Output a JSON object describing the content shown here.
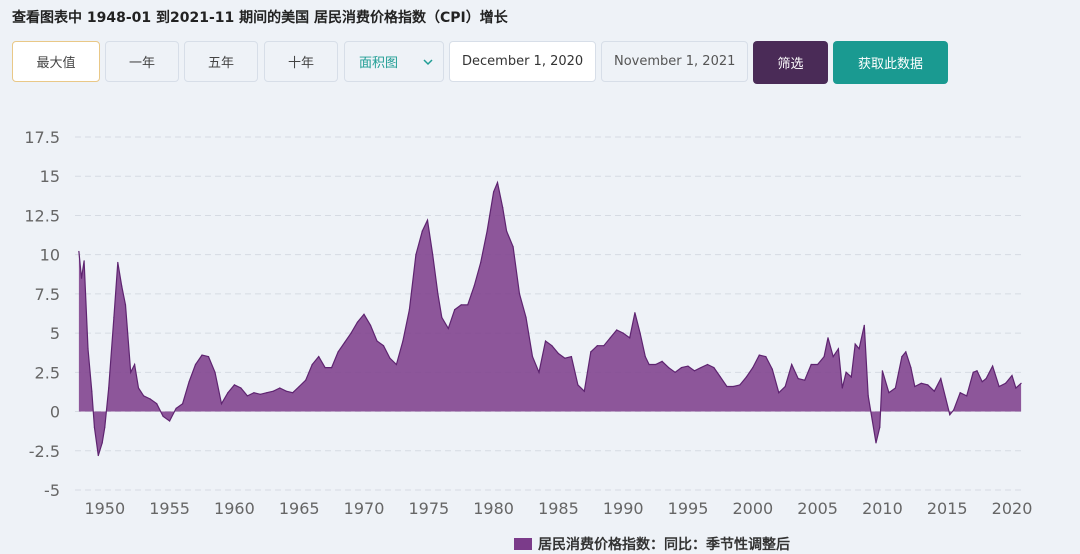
{
  "page": {
    "title": "查看图表中 1948-01 到2021-11 期间的美国 居民消费价格指数（CPI）增长"
  },
  "toolbar": {
    "ranges": [
      "最大值",
      "一年",
      "五年",
      "十年"
    ],
    "chart_type_select": "面积图",
    "start_date": "December 1, 2020",
    "end_date": "November 1, 2021",
    "filter_label": "筛选",
    "fetch_label": "获取此数据"
  },
  "colors": {
    "area": "#7b3b8a",
    "filter_button": "#4a2b57",
    "fetch_button": "#1a9a91",
    "accent_text": "#1f9d94"
  },
  "chart_data": {
    "type": "area",
    "title": "",
    "xlabel": "",
    "ylabel": "",
    "xlim": [
      1947.7,
      2021.0
    ],
    "ylim": [
      -5,
      17.5
    ],
    "yticks": [
      "17.5",
      "15",
      "12.5",
      "10",
      "7.5",
      "5",
      "2.5",
      "0",
      "-2.5",
      "-5"
    ],
    "xticks": [
      "1950",
      "1955",
      "1960",
      "1965",
      "1970",
      "1975",
      "1980",
      "1985",
      "1990",
      "1995",
      "2000",
      "2005",
      "2010",
      "2015",
      "2020"
    ],
    "grid": "horizontal dashed",
    "legend_position": "bottom-center",
    "series": [
      {
        "name": "居民消费价格指数：同比：季节性调整后",
        "points": [
          [
            1948.0,
            10.2
          ],
          [
            1948.2,
            8.5
          ],
          [
            1948.4,
            9.6
          ],
          [
            1948.7,
            4.0
          ],
          [
            1949.0,
            1.3
          ],
          [
            1949.2,
            -1.0
          ],
          [
            1949.5,
            -2.8
          ],
          [
            1949.8,
            -2.0
          ],
          [
            1950.0,
            -1.0
          ],
          [
            1950.3,
            1.5
          ],
          [
            1950.7,
            6.0
          ],
          [
            1951.0,
            9.5
          ],
          [
            1951.3,
            8.0
          ],
          [
            1951.6,
            6.8
          ],
          [
            1952.0,
            2.5
          ],
          [
            1952.3,
            3.0
          ],
          [
            1952.6,
            1.5
          ],
          [
            1953.0,
            1.0
          ],
          [
            1953.5,
            0.8
          ],
          [
            1954.0,
            0.5
          ],
          [
            1954.5,
            -0.3
          ],
          [
            1955.0,
            -0.6
          ],
          [
            1955.5,
            0.2
          ],
          [
            1956.0,
            0.5
          ],
          [
            1956.5,
            1.9
          ],
          [
            1957.0,
            3.0
          ],
          [
            1957.5,
            3.6
          ],
          [
            1958.0,
            3.5
          ],
          [
            1958.5,
            2.5
          ],
          [
            1959.0,
            0.5
          ],
          [
            1959.5,
            1.2
          ],
          [
            1960.0,
            1.7
          ],
          [
            1960.5,
            1.5
          ],
          [
            1961.0,
            1.0
          ],
          [
            1961.5,
            1.2
          ],
          [
            1962.0,
            1.1
          ],
          [
            1962.5,
            1.2
          ],
          [
            1963.0,
            1.3
          ],
          [
            1963.5,
            1.5
          ],
          [
            1964.0,
            1.3
          ],
          [
            1964.5,
            1.2
          ],
          [
            1965.0,
            1.6
          ],
          [
            1965.5,
            2.0
          ],
          [
            1966.0,
            3.0
          ],
          [
            1966.5,
            3.5
          ],
          [
            1967.0,
            2.8
          ],
          [
            1967.5,
            2.8
          ],
          [
            1968.0,
            3.8
          ],
          [
            1968.5,
            4.4
          ],
          [
            1969.0,
            5.0
          ],
          [
            1969.5,
            5.7
          ],
          [
            1970.0,
            6.2
          ],
          [
            1970.5,
            5.5
          ],
          [
            1971.0,
            4.5
          ],
          [
            1971.5,
            4.2
          ],
          [
            1972.0,
            3.4
          ],
          [
            1972.5,
            3.0
          ],
          [
            1973.0,
            4.5
          ],
          [
            1973.5,
            6.5
          ],
          [
            1974.0,
            10.0
          ],
          [
            1974.5,
            11.5
          ],
          [
            1974.9,
            12.2
          ],
          [
            1975.3,
            10.0
          ],
          [
            1975.7,
            7.5
          ],
          [
            1976.0,
            6.0
          ],
          [
            1976.5,
            5.3
          ],
          [
            1977.0,
            6.5
          ],
          [
            1977.5,
            6.8
          ],
          [
            1978.0,
            6.8
          ],
          [
            1978.5,
            8.0
          ],
          [
            1979.0,
            9.5
          ],
          [
            1979.5,
            11.5
          ],
          [
            1980.0,
            14.0
          ],
          [
            1980.3,
            14.6
          ],
          [
            1980.7,
            13.0
          ],
          [
            1981.0,
            11.5
          ],
          [
            1981.5,
            10.5
          ],
          [
            1982.0,
            7.5
          ],
          [
            1982.5,
            6.0
          ],
          [
            1983.0,
            3.5
          ],
          [
            1983.5,
            2.5
          ],
          [
            1984.0,
            4.5
          ],
          [
            1984.5,
            4.2
          ],
          [
            1985.0,
            3.7
          ],
          [
            1985.5,
            3.4
          ],
          [
            1986.0,
            3.5
          ],
          [
            1986.5,
            1.7
          ],
          [
            1987.0,
            1.3
          ],
          [
            1987.5,
            3.8
          ],
          [
            1988.0,
            4.2
          ],
          [
            1988.5,
            4.2
          ],
          [
            1989.0,
            4.7
          ],
          [
            1989.5,
            5.2
          ],
          [
            1990.0,
            5.0
          ],
          [
            1990.5,
            4.7
          ],
          [
            1990.9,
            6.3
          ],
          [
            1991.3,
            5.0
          ],
          [
            1991.7,
            3.5
          ],
          [
            1992.0,
            3.0
          ],
          [
            1992.5,
            3.0
          ],
          [
            1993.0,
            3.2
          ],
          [
            1993.5,
            2.8
          ],
          [
            1994.0,
            2.5
          ],
          [
            1994.5,
            2.8
          ],
          [
            1995.0,
            2.9
          ],
          [
            1995.5,
            2.6
          ],
          [
            1996.0,
            2.8
          ],
          [
            1996.5,
            3.0
          ],
          [
            1997.0,
            2.8
          ],
          [
            1997.5,
            2.2
          ],
          [
            1998.0,
            1.6
          ],
          [
            1998.5,
            1.6
          ],
          [
            1999.0,
            1.7
          ],
          [
            1999.5,
            2.2
          ],
          [
            2000.0,
            2.8
          ],
          [
            2000.5,
            3.6
          ],
          [
            2001.0,
            3.5
          ],
          [
            2001.5,
            2.7
          ],
          [
            2002.0,
            1.2
          ],
          [
            2002.5,
            1.6
          ],
          [
            2003.0,
            3.0
          ],
          [
            2003.5,
            2.1
          ],
          [
            2004.0,
            2.0
          ],
          [
            2004.5,
            3.0
          ],
          [
            2005.0,
            3.0
          ],
          [
            2005.5,
            3.5
          ],
          [
            2005.8,
            4.7
          ],
          [
            2006.2,
            3.5
          ],
          [
            2006.6,
            4.0
          ],
          [
            2006.9,
            1.5
          ],
          [
            2007.2,
            2.5
          ],
          [
            2007.6,
            2.2
          ],
          [
            2007.9,
            4.3
          ],
          [
            2008.2,
            4.0
          ],
          [
            2008.6,
            5.5
          ],
          [
            2008.9,
            1.0
          ],
          [
            2009.2,
            -0.5
          ],
          [
            2009.5,
            -2.0
          ],
          [
            2009.8,
            -1.0
          ],
          [
            2010.0,
            2.6
          ],
          [
            2010.5,
            1.2
          ],
          [
            2011.0,
            1.5
          ],
          [
            2011.5,
            3.5
          ],
          [
            2011.8,
            3.8
          ],
          [
            2012.2,
            2.8
          ],
          [
            2012.5,
            1.6
          ],
          [
            2013.0,
            1.8
          ],
          [
            2013.5,
            1.7
          ],
          [
            2014.0,
            1.3
          ],
          [
            2014.5,
            2.1
          ],
          [
            2014.9,
            0.8
          ],
          [
            2015.2,
            -0.2
          ],
          [
            2015.5,
            0.1
          ],
          [
            2016.0,
            1.2
          ],
          [
            2016.5,
            1.0
          ],
          [
            2017.0,
            2.5
          ],
          [
            2017.3,
            2.6
          ],
          [
            2017.7,
            1.9
          ],
          [
            2018.0,
            2.1
          ],
          [
            2018.5,
            2.9
          ],
          [
            2019.0,
            1.6
          ],
          [
            2019.5,
            1.8
          ],
          [
            2020.0,
            2.3
          ],
          [
            2020.3,
            1.5
          ],
          [
            2020.7,
            1.8
          ]
        ]
      }
    ]
  }
}
